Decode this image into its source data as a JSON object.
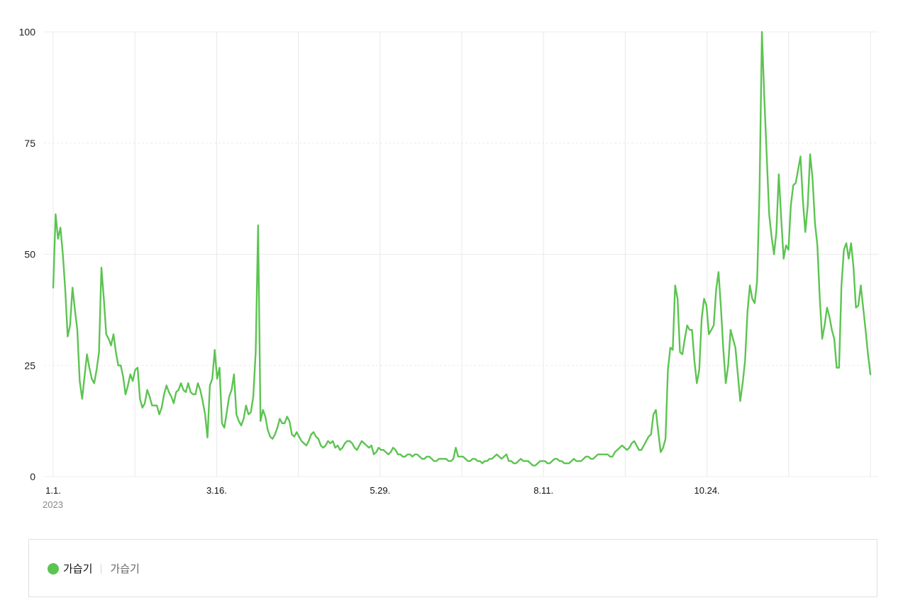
{
  "chart_data": {
    "type": "line",
    "y_ticks": [
      "0",
      "25",
      "50",
      "75",
      "100"
    ],
    "ylim": [
      0,
      100
    ],
    "x_tick_labels": [
      "1.1.",
      "3.16.",
      "5.29.",
      "8.11.",
      "10.24."
    ],
    "year_label": "2023",
    "grid": true,
    "series": [
      {
        "name": "가습기",
        "color": "#5cc451",
        "values": [
          42.5,
          59,
          53.5,
          56,
          50,
          42,
          31.5,
          34,
          42.5,
          37.5,
          33,
          21.5,
          17.5,
          22.5,
          27.5,
          24.5,
          22,
          21,
          24,
          28,
          47,
          40,
          32,
          31,
          29.5,
          32,
          28,
          25,
          25,
          22.5,
          18.5,
          20.5,
          23,
          21.5,
          24,
          24.5,
          17.5,
          15.5,
          16.5,
          19.5,
          18,
          16,
          16,
          16,
          14,
          15.5,
          18.5,
          20.5,
          19,
          18,
          16.5,
          19,
          19.5,
          21,
          19.5,
          19,
          21,
          19,
          18.5,
          18.5,
          21,
          19.5,
          17,
          14,
          8.8,
          20.5,
          22,
          28.5,
          22,
          24.5,
          12,
          11,
          14.5,
          18,
          19.5,
          23,
          14,
          12.5,
          11.5,
          13,
          16,
          14,
          14.5,
          18,
          28,
          56.5,
          12.5,
          15,
          13.5,
          10.5,
          9,
          8.5,
          9.5,
          11,
          13,
          12,
          12,
          13.5,
          12.5,
          9.5,
          9,
          10,
          9,
          8,
          7.5,
          7,
          8,
          9.5,
          10,
          9,
          8.5,
          7,
          6.5,
          7,
          8,
          7.5,
          8,
          6.5,
          7,
          6,
          6.5,
          7.5,
          8,
          8,
          7.5,
          6.5,
          6,
          7,
          8,
          7.5,
          7,
          6.5,
          7,
          5,
          5.5,
          6.5,
          6,
          6,
          5.5,
          5,
          5.5,
          6.5,
          6,
          5,
          5,
          4.5,
          4.5,
          5,
          5,
          4.5,
          5,
          5,
          4.5,
          4,
          4,
          4.5,
          4.5,
          4,
          3.5,
          3.5,
          4,
          4,
          4,
          4,
          3.5,
          3.5,
          4,
          6.5,
          4.5,
          4.5,
          4.5,
          4,
          3.5,
          3.5,
          4,
          4,
          3.5,
          3.5,
          3,
          3.5,
          3.5,
          4,
          4,
          4.5,
          5,
          4.5,
          4,
          4.5,
          5,
          3.5,
          3.5,
          3,
          3,
          3.5,
          4,
          3.5,
          3.5,
          3.5,
          3,
          2.5,
          2.5,
          3,
          3.5,
          3.5,
          3.5,
          3,
          3,
          3.5,
          4,
          4,
          3.5,
          3.5,
          3,
          3,
          3,
          3.5,
          4,
          3.5,
          3.5,
          3.5,
          4,
          4.5,
          4.5,
          4,
          4,
          4.5,
          5,
          5,
          5,
          5,
          5,
          4.5,
          4.5,
          5.5,
          6,
          6.5,
          7,
          6.5,
          6,
          6.5,
          7.5,
          8,
          7,
          6,
          6,
          7,
          8,
          9,
          9.5,
          14,
          15,
          10,
          5.5,
          6.5,
          8.5,
          24,
          29,
          28.5,
          43,
          40,
          28,
          27.5,
          31,
          34,
          33,
          33,
          26,
          21,
          24,
          35.5,
          40,
          38.5,
          32,
          33,
          34,
          42,
          46,
          38,
          28.5,
          21,
          25,
          33,
          31,
          29,
          23,
          17,
          21,
          26,
          37,
          43,
          40,
          39,
          44,
          64,
          100,
          85,
          72,
          59,
          54,
          50,
          55,
          68,
          58,
          49,
          52,
          51,
          61,
          65.5,
          66,
          69,
          72,
          62,
          55,
          61,
          72.5,
          67,
          57,
          52,
          40,
          31,
          34,
          38,
          36,
          33,
          31,
          24.5,
          24.5,
          43,
          51,
          52.5,
          49,
          52.5,
          47,
          38,
          38.5,
          43,
          38,
          33,
          27.5,
          23
        ]
      }
    ]
  },
  "legend": {
    "series_label": "가습기",
    "sub_label": "가습기"
  }
}
